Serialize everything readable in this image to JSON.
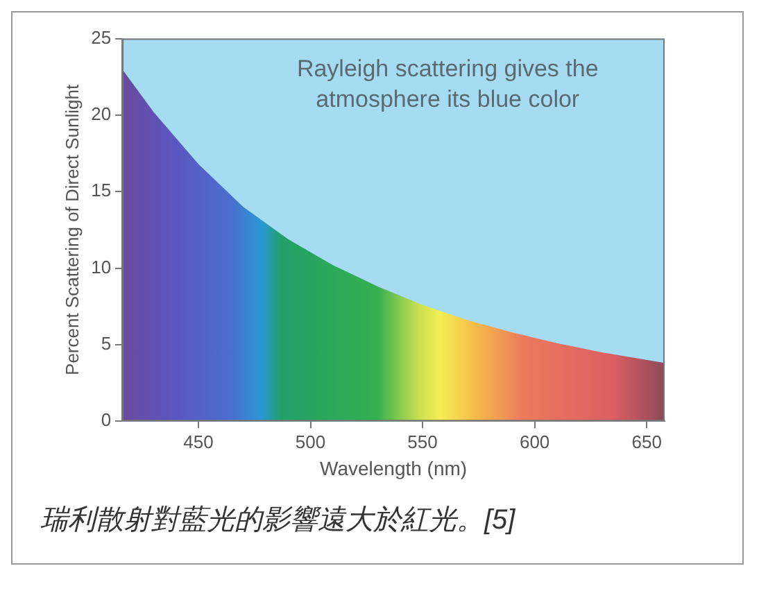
{
  "chart_data": {
    "type": "area",
    "xlabel": "Wavelength (nm)",
    "ylabel": "Percent Scattering of Direct Sunlight",
    "x": [
      416,
      430,
      450,
      470,
      490,
      510,
      530,
      550,
      570,
      590,
      610,
      630,
      658
    ],
    "values": [
      23.0,
      20.2,
      16.8,
      14.0,
      11.9,
      10.2,
      8.8,
      7.6,
      6.6,
      5.8,
      5.1,
      4.5,
      3.8
    ],
    "xlim": [
      416,
      658
    ],
    "ylim": [
      0,
      25
    ],
    "xticks": [
      450,
      500,
      550,
      600,
      650
    ],
    "yticks": [
      0,
      5,
      10,
      15,
      20,
      25
    ],
    "marker": "none",
    "annotations": [
      "Rayleigh scattering gives the atmosphere its blue color",
      "瑞利散射對藍光的影響遠大於紅光。[5]"
    ]
  }
}
